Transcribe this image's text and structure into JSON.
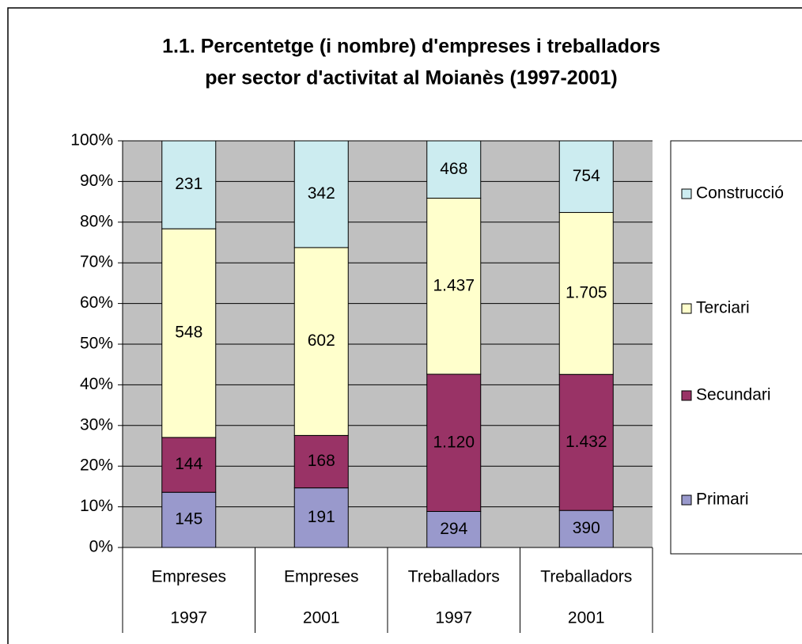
{
  "chart_data": {
    "type": "bar",
    "stack": "percent",
    "title": [
      "1.1. Percentetge (i nombre) d'empreses i treballadors",
      "per sector d'activitat al Moianès (1997-2001)"
    ],
    "categories": [
      "Empreses",
      "Empreses",
      "Treballadors",
      "Treballadors"
    ],
    "categories2": [
      "1997",
      "2001",
      "1997",
      "2001"
    ],
    "series": [
      {
        "name": "Primari",
        "color": "#9999cc",
        "values": [
          145,
          191,
          294,
          390
        ],
        "value_labels": [
          "145",
          "191",
          "294",
          "390"
        ]
      },
      {
        "name": "Secundari",
        "color": "#993366",
        "values": [
          144,
          168,
          1120,
          1432
        ],
        "value_labels": [
          "144",
          "168",
          "1.120",
          "1.432"
        ]
      },
      {
        "name": "Terciari",
        "color": "#ffffcc",
        "values": [
          548,
          602,
          1437,
          1705
        ],
        "value_labels": [
          "548",
          "602",
          "1.437",
          "1.705"
        ]
      },
      {
        "name": "Construcció",
        "color": "#ccecf0",
        "values": [
          231,
          342,
          468,
          754
        ],
        "value_labels": [
          "231",
          "342",
          "468",
          "754"
        ]
      }
    ],
    "ylim": [
      0,
      100
    ],
    "yticks": [
      {
        "value": 0,
        "label": "0%"
      },
      {
        "value": 10,
        "label": "10%"
      },
      {
        "value": 20,
        "label": "20%"
      },
      {
        "value": 30,
        "label": "30%"
      },
      {
        "value": 40,
        "label": "40%"
      },
      {
        "value": 50,
        "label": "50%"
      },
      {
        "value": 60,
        "label": "60%"
      },
      {
        "value": 70,
        "label": "70%"
      },
      {
        "value": 80,
        "label": "80%"
      },
      {
        "value": 90,
        "label": "90%"
      },
      {
        "value": 100,
        "label": "100%"
      }
    ],
    "grid": true,
    "plot_background": "#c0c0c0",
    "legend": "right"
  }
}
